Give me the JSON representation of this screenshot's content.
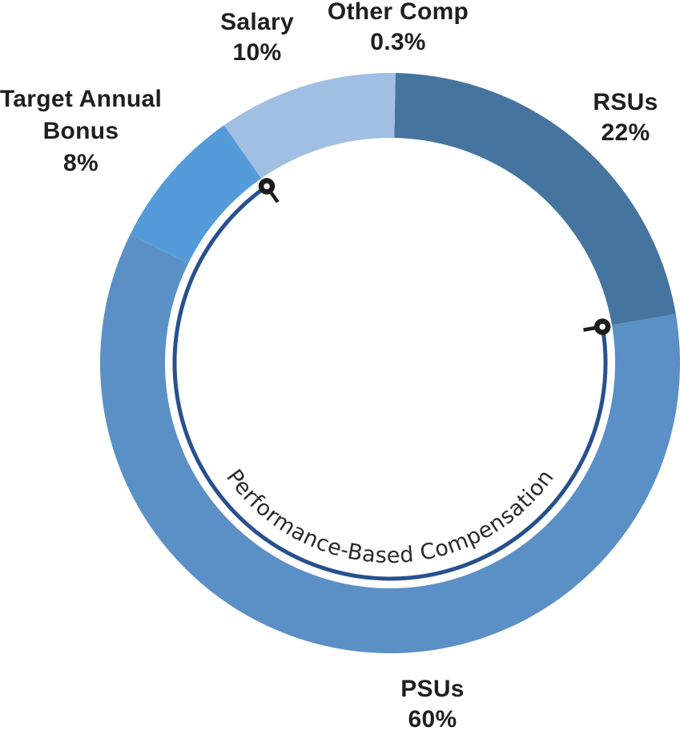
{
  "chart_data": {
    "type": "pie",
    "subtype": "donut",
    "title": "",
    "legend": "none",
    "start_angle_deg": 0,
    "direction": "clockwise",
    "inner_radius_ratio": 0.78,
    "categories": [
      "Other Comp",
      "RSUs",
      "PSUs",
      "Target Annual Bonus",
      "Salary"
    ],
    "values": [
      0.3,
      22,
      60,
      8,
      10
    ],
    "slices": [
      {
        "label": "Other Comp",
        "value": 0.3,
        "display": "0.3%",
        "color": "#D1DEF1"
      },
      {
        "label": "RSUs",
        "value": 22,
        "display": "22%",
        "color": "#45759F"
      },
      {
        "label": "PSUs",
        "value": 60,
        "display": "60%",
        "color": "#5B90C6"
      },
      {
        "label": "Target Annual Bonus",
        "value": 8,
        "display": "8%",
        "color": "#549BDA"
      },
      {
        "label": "Salary",
        "value": 10,
        "display": "10%",
        "color": "#A1BFE3"
      }
    ],
    "annotation_arc": {
      "label": "Performance-Based Compensation",
      "covers": [
        "PSUs",
        "Target Annual Bonus"
      ],
      "covers_total_pct": 68,
      "color": "#27508E",
      "marker_color": "#1C1C1C",
      "text_color": "#2A2A2A"
    }
  }
}
